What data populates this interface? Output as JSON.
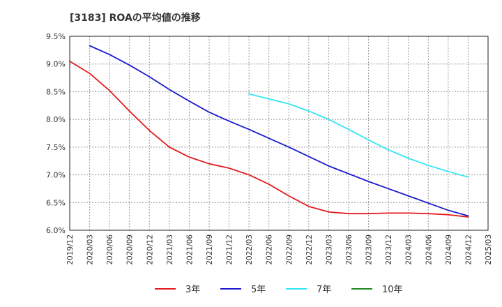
{
  "chart_data": {
    "type": "line",
    "title": "[3183]  ROAの平均値の推移",
    "ylim": [
      6.0,
      9.5
    ],
    "y_ticks": [
      6.0,
      6.5,
      7.0,
      7.5,
      8.0,
      8.5,
      9.0,
      9.5
    ],
    "y_tick_labels": [
      "6.0%",
      "6.5%",
      "7.0%",
      "7.5%",
      "8.0%",
      "8.5%",
      "9.0%",
      "9.5%"
    ],
    "x_tick_labels": [
      "2019/12",
      "2020/03",
      "2020/06",
      "2020/09",
      "2020/12",
      "2021/03",
      "2021/06",
      "2021/09",
      "2021/12",
      "2022/03",
      "2022/06",
      "2022/09",
      "2022/12",
      "2023/03",
      "2023/06",
      "2023/09",
      "2023/12",
      "2024/03",
      "2024/06",
      "2024/09",
      "2024/12",
      "2025/03"
    ],
    "grid": true,
    "legend_position": "bottom",
    "series": [
      {
        "name": "3年",
        "color": "#e31a1c",
        "x": [
          "2019/12",
          "2020/03",
          "2020/06",
          "2020/09",
          "2020/12",
          "2021/03",
          "2021/06",
          "2021/09",
          "2021/12",
          "2022/03",
          "2022/06",
          "2022/09",
          "2022/12",
          "2023/03",
          "2023/06",
          "2023/09",
          "2023/12",
          "2024/03",
          "2024/06",
          "2024/09",
          "2024/12"
        ],
        "values": [
          9.05,
          8.83,
          8.52,
          8.15,
          7.8,
          7.5,
          7.32,
          7.2,
          7.12,
          7.0,
          6.83,
          6.62,
          6.43,
          6.33,
          6.3,
          6.3,
          6.31,
          6.31,
          6.3,
          6.28,
          6.24
        ]
      },
      {
        "name": "5年",
        "color": "#1a1acd",
        "x": [
          "2020/03",
          "2020/06",
          "2020/09",
          "2020/12",
          "2021/03",
          "2021/06",
          "2021/09",
          "2021/12",
          "2022/03",
          "2022/06",
          "2022/09",
          "2022/12",
          "2023/03",
          "2023/06",
          "2023/09",
          "2023/12",
          "2024/03",
          "2024/06",
          "2024/09",
          "2024/12"
        ],
        "values": [
          9.33,
          9.17,
          8.98,
          8.77,
          8.54,
          8.33,
          8.13,
          7.97,
          7.82,
          7.66,
          7.5,
          7.33,
          7.16,
          7.02,
          6.88,
          6.75,
          6.62,
          6.49,
          6.36,
          6.26
        ]
      },
      {
        "name": "7年",
        "color": "#33e6f2",
        "x": [
          "2022/03",
          "2022/06",
          "2022/09",
          "2022/12",
          "2023/03",
          "2023/06",
          "2023/09",
          "2023/12",
          "2024/03",
          "2024/06",
          "2024/09",
          "2024/12"
        ],
        "values": [
          8.46,
          8.37,
          8.28,
          8.15,
          8.0,
          7.82,
          7.63,
          7.45,
          7.3,
          7.17,
          7.06,
          6.96
        ]
      },
      {
        "name": "10年",
        "color": "#228b22",
        "x": [],
        "values": []
      }
    ]
  }
}
